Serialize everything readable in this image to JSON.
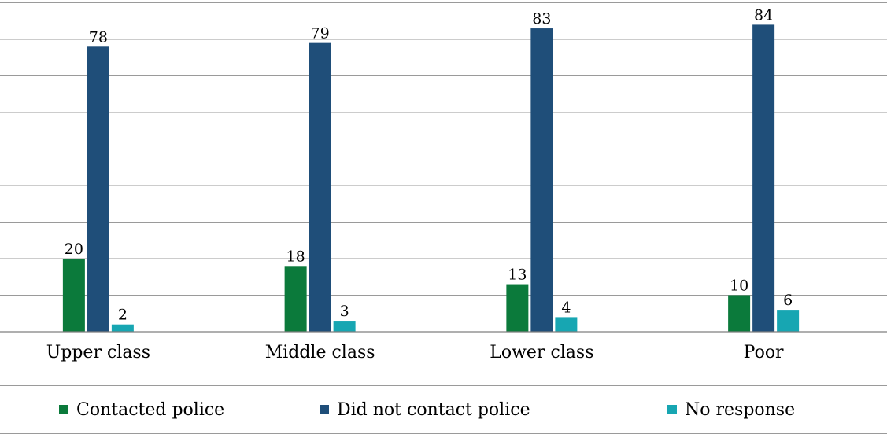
{
  "chart_data": {
    "type": "bar",
    "categories": [
      "Upper class",
      "Middle class",
      "Lower class",
      "Poor"
    ],
    "series": [
      {
        "name": "Contacted police",
        "values": [
          20,
          18,
          13,
          10
        ],
        "color": "#0b7a3b"
      },
      {
        "name": "Did not contact police",
        "values": [
          78,
          79,
          83,
          84
        ],
        "color": "#1f4e79"
      },
      {
        "name": "No response",
        "values": [
          2,
          3,
          4,
          6
        ],
        "color": "#17a6b2"
      }
    ],
    "ylim": [
      0,
      90
    ],
    "grid": true,
    "legend_position": "bottom"
  }
}
